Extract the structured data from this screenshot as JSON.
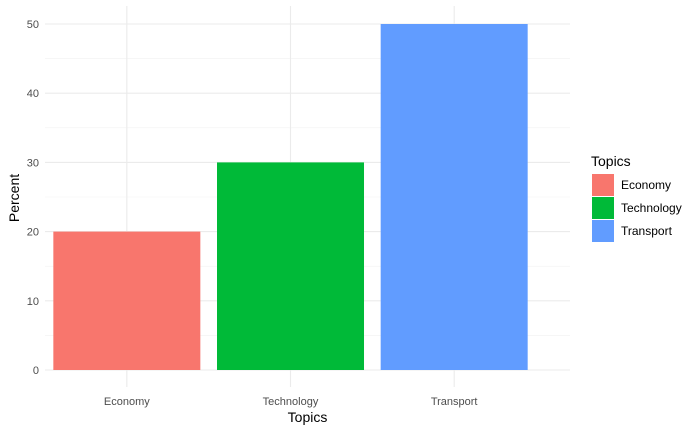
{
  "chart_data": {
    "type": "bar",
    "categories": [
      "Economy",
      "Technology",
      "Transport"
    ],
    "values": [
      20,
      30,
      50
    ],
    "colors": [
      "#F8766D",
      "#00BA38",
      "#619CFF"
    ],
    "xlabel": "Topics",
    "ylabel": "Percent",
    "ylim": [
      0,
      52.5
    ],
    "yticks": [
      0,
      10,
      20,
      30,
      40,
      50
    ],
    "grid": true,
    "legend": {
      "title": "Topics",
      "position": "right",
      "entries": [
        "Economy",
        "Technology",
        "Transport"
      ]
    }
  }
}
